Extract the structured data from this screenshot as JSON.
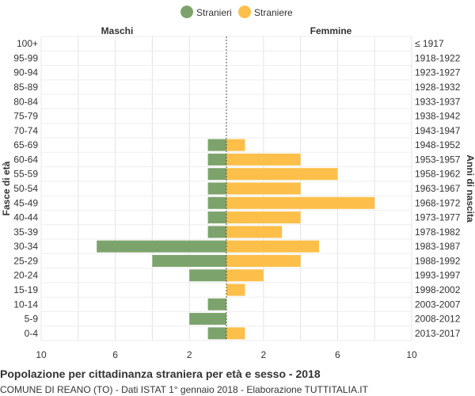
{
  "chart_data": {
    "type": "bar",
    "orientation": "horizontal-population-pyramid",
    "legend": {
      "placement": "top-center",
      "entries": [
        "Stranieri",
        "Straniere"
      ]
    },
    "side_labels": {
      "left": "Maschi",
      "right": "Femmine"
    },
    "ylabel_left": "Fasce di età",
    "ylabel_right": "Anni di nascita",
    "xlim": [
      -10,
      10
    ],
    "x_ticks": [
      {
        "value": -10,
        "label": "10"
      },
      {
        "value": -6,
        "label": "6"
      },
      {
        "value": -2,
        "label": "2"
      },
      {
        "value": 2,
        "label": "2"
      },
      {
        "value": 6,
        "label": "6"
      },
      {
        "value": 10,
        "label": "10"
      }
    ],
    "grid": true,
    "categories": [
      "100+",
      "95-99",
      "90-94",
      "85-89",
      "80-84",
      "75-79",
      "70-74",
      "65-69",
      "60-64",
      "55-59",
      "50-54",
      "45-49",
      "40-44",
      "35-39",
      "30-34",
      "25-29",
      "20-24",
      "15-19",
      "10-14",
      "5-9",
      "0-4"
    ],
    "birth_years": [
      "≤ 1917",
      "1918-1922",
      "1923-1927",
      "1928-1932",
      "1933-1937",
      "1938-1942",
      "1943-1947",
      "1948-1952",
      "1953-1957",
      "1958-1962",
      "1963-1967",
      "1968-1972",
      "1973-1977",
      "1978-1982",
      "1983-1987",
      "1988-1992",
      "1993-1997",
      "1998-2002",
      "2003-2007",
      "2008-2012",
      "2013-2017"
    ],
    "series": [
      {
        "name": "Stranieri",
        "color": "#7da36d",
        "values": [
          0,
          0,
          0,
          0,
          0,
          0,
          0,
          1,
          1,
          1,
          1,
          1,
          1,
          1,
          7,
          4,
          2,
          0,
          1,
          2,
          1
        ]
      },
      {
        "name": "Straniere",
        "color": "#fcbf49",
        "values": [
          0,
          0,
          0,
          0,
          0,
          0,
          0,
          1,
          4,
          6,
          4,
          8,
          4,
          3,
          5,
          4,
          2,
          1,
          0,
          0,
          1
        ]
      }
    ]
  },
  "footer": {
    "title": "Popolazione per cittadinanza straniera per età e sesso - 2018",
    "subtitle": "COMUNE DI REANO (TO) - Dati ISTAT 1° gennaio 2018 - Elaborazione TUTTITALIA.IT"
  }
}
